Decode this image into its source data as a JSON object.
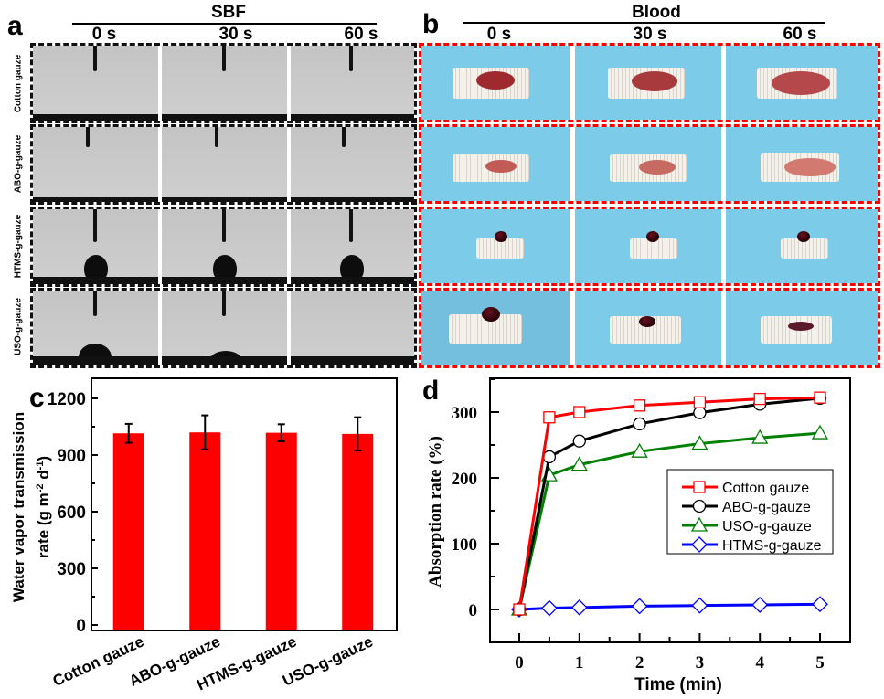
{
  "figure": {
    "panel_a": {
      "letter": "a",
      "title": "SBF",
      "time_labels": [
        "0 s",
        "30 s",
        "60 s"
      ],
      "row_labels": [
        "Cotton gauze",
        "ABO-g-gauze",
        "HTMS-g-gauze",
        "USO-g-gauze"
      ],
      "rows": [
        {
          "sample": "Cotton gauze",
          "frames": [
            "needle-only",
            "needle-only",
            "needle-only"
          ]
        },
        {
          "sample": "ABO-g-gauze",
          "frames": [
            "needle-only",
            "needle-only",
            "needle-only"
          ]
        },
        {
          "sample": "HTMS-g-gauze",
          "frames": [
            "droplet",
            "droplet",
            "droplet"
          ]
        },
        {
          "sample": "USO-g-gauze",
          "frames": [
            "droplet-spreading",
            "droplet-small",
            "absorbed"
          ]
        }
      ],
      "border_color": "#111111"
    },
    "panel_b": {
      "letter": "b",
      "title": "Blood",
      "time_labels": [
        "0 s",
        "30 s",
        "60 s"
      ],
      "rows": [
        {
          "sample": "Cotton gauze",
          "frames": [
            "stain",
            "stain",
            "stain-large"
          ]
        },
        {
          "sample": "ABO-g-gauze",
          "frames": [
            "stain",
            "stain",
            "stain-large"
          ]
        },
        {
          "sample": "HTMS-g-gauze",
          "frames": [
            "bead",
            "bead",
            "bead"
          ]
        },
        {
          "sample": "USO-g-gauze",
          "frames": [
            "bead",
            "bead-absorbing",
            "absorbed"
          ]
        }
      ],
      "border_color": "#ff0000",
      "background_color": "#7ccbe8"
    }
  },
  "chart_data": [
    {
      "panel": "c",
      "type": "bar",
      "title": "",
      "categories": [
        "Cotton gauze",
        "ABO-g-gauze",
        "HTMS-g-gauze",
        "USO-g-gauze"
      ],
      "values": [
        1015,
        1020,
        1018,
        1012
      ],
      "errors": [
        50,
        90,
        45,
        88
      ],
      "xlabel": "",
      "ylabel_line1": "Water vapor transmission",
      "ylabel_line2": "rate (g m",
      "ylabel_sup1": "-2",
      "ylabel_mid": " d",
      "ylabel_sup2": "-1",
      "ylabel_end": ")",
      "ylim": [
        0,
        1300
      ],
      "yticks": [
        0,
        300,
        600,
        900,
        1200
      ],
      "bar_color": "#ff0000",
      "grid": false
    },
    {
      "panel": "d",
      "type": "line",
      "title": "",
      "x": [
        0,
        0.5,
        1,
        2,
        3,
        4,
        5
      ],
      "series": [
        {
          "name": "Cotton gauze",
          "marker": "square",
          "color": "#ff0000",
          "values": [
            0,
            292,
            300,
            310,
            315,
            320,
            322
          ]
        },
        {
          "name": "ABO-g-gauze",
          "marker": "circle",
          "color": "#000000",
          "values": [
            0,
            232,
            256,
            282,
            299,
            312,
            321
          ]
        },
        {
          "name": "USO-g-gauze",
          "marker": "triangle",
          "color": "#008000",
          "values": [
            0,
            204,
            220,
            240,
            252,
            261,
            268
          ]
        },
        {
          "name": "HTMS-g-gauze",
          "marker": "diamond",
          "color": "#0000ff",
          "values": [
            0,
            2,
            3,
            5,
            6,
            7,
            8
          ]
        }
      ],
      "xlabel": "Time (min)",
      "ylabel": "Absorption rate (%)",
      "xlim": [
        -0.5,
        5.5
      ],
      "ylim": [
        -50,
        350
      ],
      "xticks": [
        0,
        1,
        2,
        3,
        4,
        5
      ],
      "yticks": [
        0,
        100,
        200,
        300
      ],
      "legend_position": "center-right",
      "grid": false
    }
  ]
}
